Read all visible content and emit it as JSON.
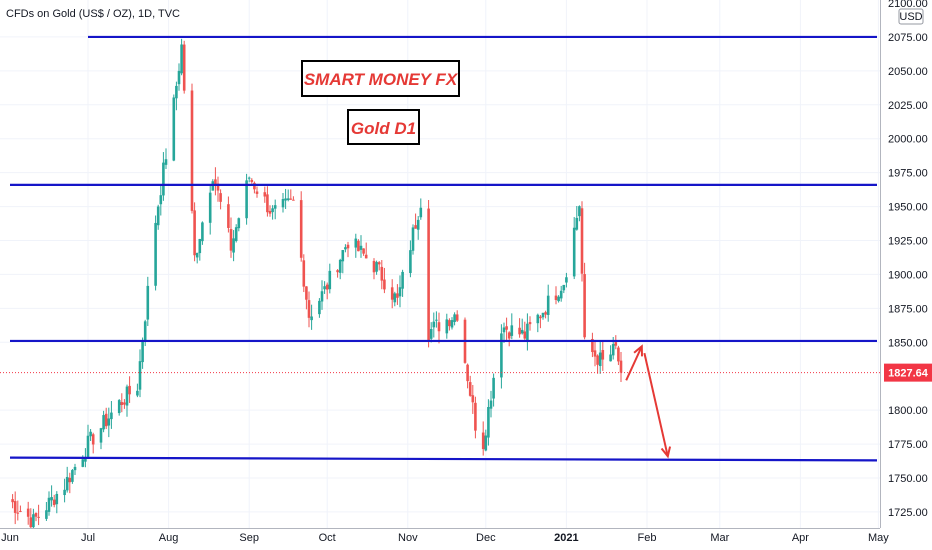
{
  "chart_data": {
    "type": "candlestick",
    "title": "CFDs on Gold (US$ / OZ), 1D, TVC",
    "currency": "USD",
    "ylim": [
      1722,
      2102
    ],
    "y_ticks": [
      {
        "value": 2100,
        "label": "2100.00"
      },
      {
        "value": 2075,
        "label": "2075.00"
      },
      {
        "value": 2050,
        "label": "2050.00"
      },
      {
        "value": 2025,
        "label": "2025.00"
      },
      {
        "value": 2000,
        "label": "2000.00"
      },
      {
        "value": 1975,
        "label": "1975.00"
      },
      {
        "value": 1950,
        "label": "1950.00"
      },
      {
        "value": 1925,
        "label": "1925.00"
      },
      {
        "value": 1900,
        "label": "1900.00"
      },
      {
        "value": 1875,
        "label": "1875.00"
      },
      {
        "value": 1850,
        "label": "1850.00"
      },
      {
        "value": 1800,
        "label": "1800.00"
      },
      {
        "value": 1775,
        "label": "1775.00"
      },
      {
        "value": 1750,
        "label": "1750.00"
      },
      {
        "value": 1725,
        "label": "1725.00"
      }
    ],
    "x_labels": [
      {
        "date": "2020-06-01",
        "label": "Jun",
        "bold": false
      },
      {
        "date": "2020-07-01",
        "label": "Jul",
        "bold": false
      },
      {
        "date": "2020-08-01",
        "label": "Aug",
        "bold": false
      },
      {
        "date": "2020-09-01",
        "label": "Sep",
        "bold": false
      },
      {
        "date": "2020-10-01",
        "label": "Oct",
        "bold": false
      },
      {
        "date": "2020-11-01",
        "label": "Nov",
        "bold": false
      },
      {
        "date": "2020-12-01",
        "label": "Dec",
        "bold": false
      },
      {
        "date": "2021-01-01",
        "label": "2021",
        "bold": true
      },
      {
        "date": "2021-02-01",
        "label": "Feb",
        "bold": false
      },
      {
        "date": "2021-03-01",
        "label": "Mar",
        "bold": false
      },
      {
        "date": "2021-04-01",
        "label": "Apr",
        "bold": false
      },
      {
        "date": "2021-05-01",
        "label": "May",
        "bold": false
      }
    ],
    "last_price": {
      "value": 1827.64,
      "label": "1827.64"
    },
    "anchor_points": [
      [
        "2020-06-01",
        1733
      ],
      [
        "2020-06-10",
        1718
      ],
      [
        "2020-06-22",
        1745
      ],
      [
        "2020-07-01",
        1775
      ],
      [
        "2020-07-13",
        1805
      ],
      [
        "2020-07-20",
        1818
      ],
      [
        "2020-07-27",
        1940
      ],
      [
        "2020-08-03",
        2025
      ],
      [
        "2020-08-06",
        2068
      ],
      [
        "2020-08-11",
        1912
      ],
      [
        "2020-08-18",
        1975
      ],
      [
        "2020-08-25",
        1920
      ],
      [
        "2020-09-01",
        1972
      ],
      [
        "2020-09-10",
        1945
      ],
      [
        "2020-09-18",
        1953
      ],
      [
        "2020-09-24",
        1870
      ],
      [
        "2020-09-30",
        1888
      ],
      [
        "2020-10-09",
        1925
      ],
      [
        "2020-10-20",
        1905
      ],
      [
        "2020-10-28",
        1880
      ],
      [
        "2020-11-06",
        1955
      ],
      [
        "2020-11-09",
        1858
      ],
      [
        "2020-11-20",
        1872
      ],
      [
        "2020-11-27",
        1790
      ],
      [
        "2020-11-30",
        1776
      ],
      [
        "2020-12-07",
        1862
      ],
      [
        "2020-12-16",
        1855
      ],
      [
        "2020-12-31",
        1895
      ],
      [
        "2021-01-06",
        1952
      ],
      [
        "2021-01-08",
        1848
      ],
      [
        "2021-01-15",
        1835
      ],
      [
        "2021-01-20",
        1845
      ],
      [
        "2021-01-22",
        1828
      ]
    ],
    "horizontal_levels": [
      {
        "from": "2020-07-01",
        "value": 2075
      },
      {
        "from": "2020-06-01",
        "value": 1966
      },
      {
        "from": "2020-06-01",
        "value": 1851
      },
      {
        "from": "2020-06-01",
        "value": 1765,
        "end_value": 1763
      }
    ],
    "projection_arrows": [
      {
        "from": {
          "date": "2021-01-24",
          "value": 1822
        },
        "to": {
          "date": "2021-01-30",
          "value": 1847
        }
      },
      {
        "from": {
          "date": "2021-01-31",
          "value": 1842
        },
        "to": {
          "date": "2021-02-09",
          "value": 1766
        }
      }
    ],
    "colors": {
      "up": "#26a69a",
      "down": "#ef5350",
      "levels": "#1515c8",
      "annotation": "#e53935",
      "price_badge": "#f23645",
      "grid": "#f0f3fa"
    },
    "grid": true
  },
  "annotations": {
    "brand": "SMART MONEY FX",
    "timeframe": "Gold D1"
  }
}
